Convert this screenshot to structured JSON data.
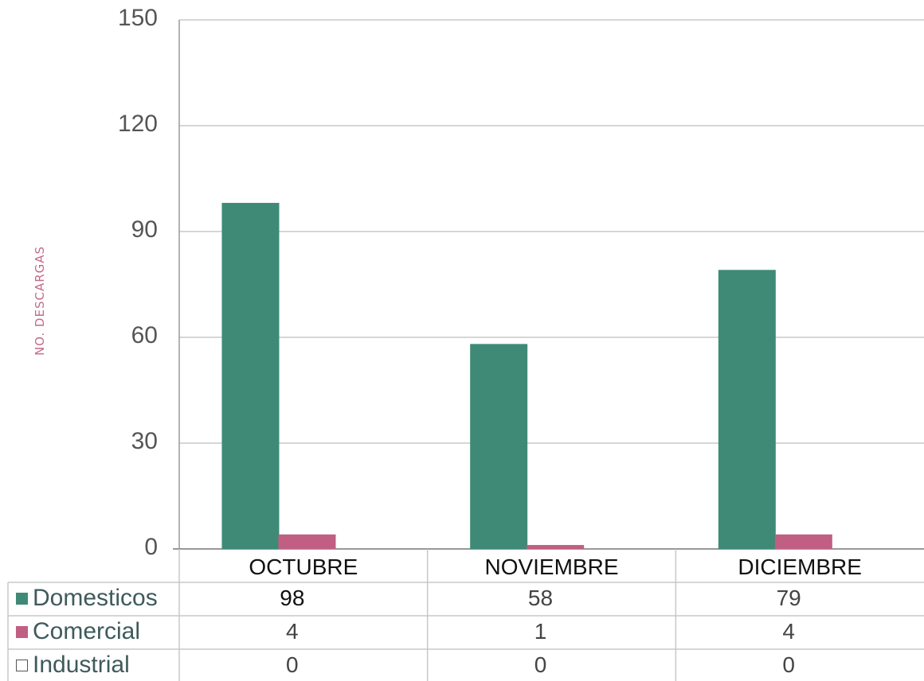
{
  "chart_data": {
    "type": "bar",
    "ylabel": "NO. DESCARGAS",
    "ylim": [
      0,
      150
    ],
    "yticks": [
      "0",
      "30",
      "60",
      "90",
      "120",
      "150"
    ],
    "grid": true,
    "categories": [
      "OCTUBRE",
      "NOVIEMBRE",
      "DICIEMBRE"
    ],
    "series": [
      {
        "name": "Domesticos",
        "values": [
          98,
          58,
          79
        ],
        "color": "#3e8a77"
      },
      {
        "name": "Comercial",
        "values": [
          4,
          1,
          4
        ],
        "color": "#c05f82"
      },
      {
        "name": "Industrial",
        "values": [
          0,
          0,
          0
        ],
        "color": "#ffffff"
      }
    ],
    "data_table": [
      [
        "98",
        "58",
        "79"
      ],
      [
        "4",
        "1",
        "4"
      ],
      [
        "0",
        "0",
        "0"
      ]
    ],
    "legend_placement": "data-table-left"
  }
}
